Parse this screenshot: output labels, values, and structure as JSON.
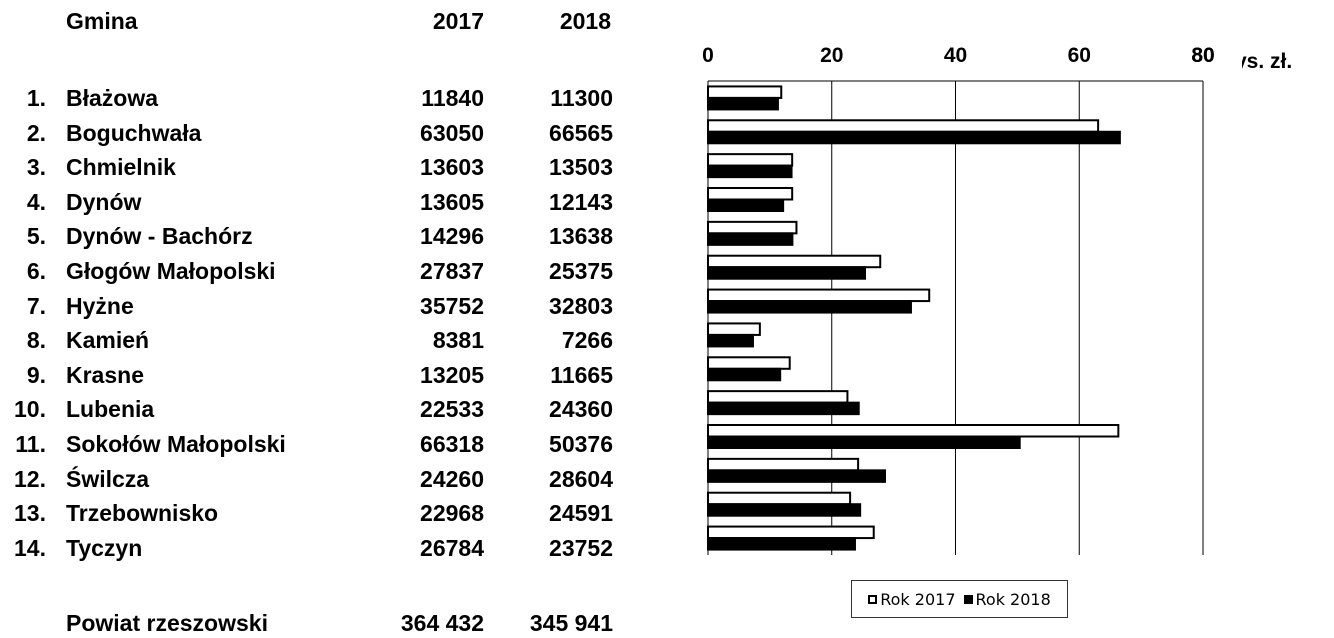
{
  "table": {
    "header": {
      "name": "Gmina",
      "y2017": "2017",
      "y2018": "2018"
    },
    "rows": [
      {
        "num": "1.",
        "name": "Błażowa",
        "v2017": "11840",
        "v2018": "11300"
      },
      {
        "num": "2.",
        "name": "Boguchwała",
        "v2017": "63050",
        "v2018": "66565"
      },
      {
        "num": "3.",
        "name": "Chmielnik",
        "v2017": "13603",
        "v2018": "13503"
      },
      {
        "num": "4.",
        "name": "Dynów",
        "v2017": "13605",
        "v2018": "12143"
      },
      {
        "num": "5.",
        "name": "Dynów - Bachórz",
        "v2017": "14296",
        "v2018": "13638"
      },
      {
        "num": "6.",
        "name": "Głogów Małopolski",
        "v2017": "27837",
        "v2018": "25375"
      },
      {
        "num": "7.",
        "name": "Hyżne",
        "v2017": "35752",
        "v2018": "32803"
      },
      {
        "num": "8.",
        "name": "Kamień",
        "v2017": "8381",
        "v2018": "7266"
      },
      {
        "num": "9.",
        "name": "Krasne",
        "v2017": "13205",
        "v2018": "11665"
      },
      {
        "num": "10.",
        "name": "Lubenia",
        "v2017": "22533",
        "v2018": "24360"
      },
      {
        "num": "11.",
        "name": "Sokołów Małopolski",
        "v2017": "66318",
        "v2018": "50376"
      },
      {
        "num": "12.",
        "name": "Świlcza",
        "v2017": "24260",
        "v2018": "28604"
      },
      {
        "num": "13.",
        "name": "Trzebownisko",
        "v2017": "22968",
        "v2018": "24591"
      },
      {
        "num": "14.",
        "name": "Tyczyn",
        "v2017": "26784",
        "v2018": "23752"
      }
    ],
    "footer": {
      "name": "Powiat rzeszowski",
      "v2017": "364 432",
      "v2018": "345 941"
    }
  },
  "chart_data": {
    "type": "bar",
    "orientation": "horizontal",
    "categories": [
      "Błażowa",
      "Boguchwała",
      "Chmielnik",
      "Dynów",
      "Dynów - Bachórz",
      "Głogów Małopolski",
      "Hyżne",
      "Kamień",
      "Krasne",
      "Lubenia",
      "Sokołów Małopolski",
      "Świlcza",
      "Trzebownisko",
      "Tyczyn"
    ],
    "series": [
      {
        "name": "Rok 2017",
        "color": "#ffffff",
        "values": [
          11.84,
          63.05,
          13.603,
          13.605,
          14.296,
          27.837,
          35.752,
          8.381,
          13.205,
          22.533,
          66.318,
          24.26,
          22.968,
          26.784
        ]
      },
      {
        "name": "Rok 2018",
        "color": "#000000",
        "values": [
          11.3,
          66.565,
          13.503,
          12.143,
          13.638,
          25.375,
          32.803,
          7.266,
          11.665,
          24.36,
          50.376,
          28.604,
          24.591,
          23.752
        ]
      }
    ],
    "xlim": [
      0,
      80
    ],
    "xticks": [
      "0",
      "20",
      "40",
      "60",
      "80"
    ],
    "xlabel": "tys. zł.",
    "grid": true,
    "legend_position": "bottom"
  }
}
